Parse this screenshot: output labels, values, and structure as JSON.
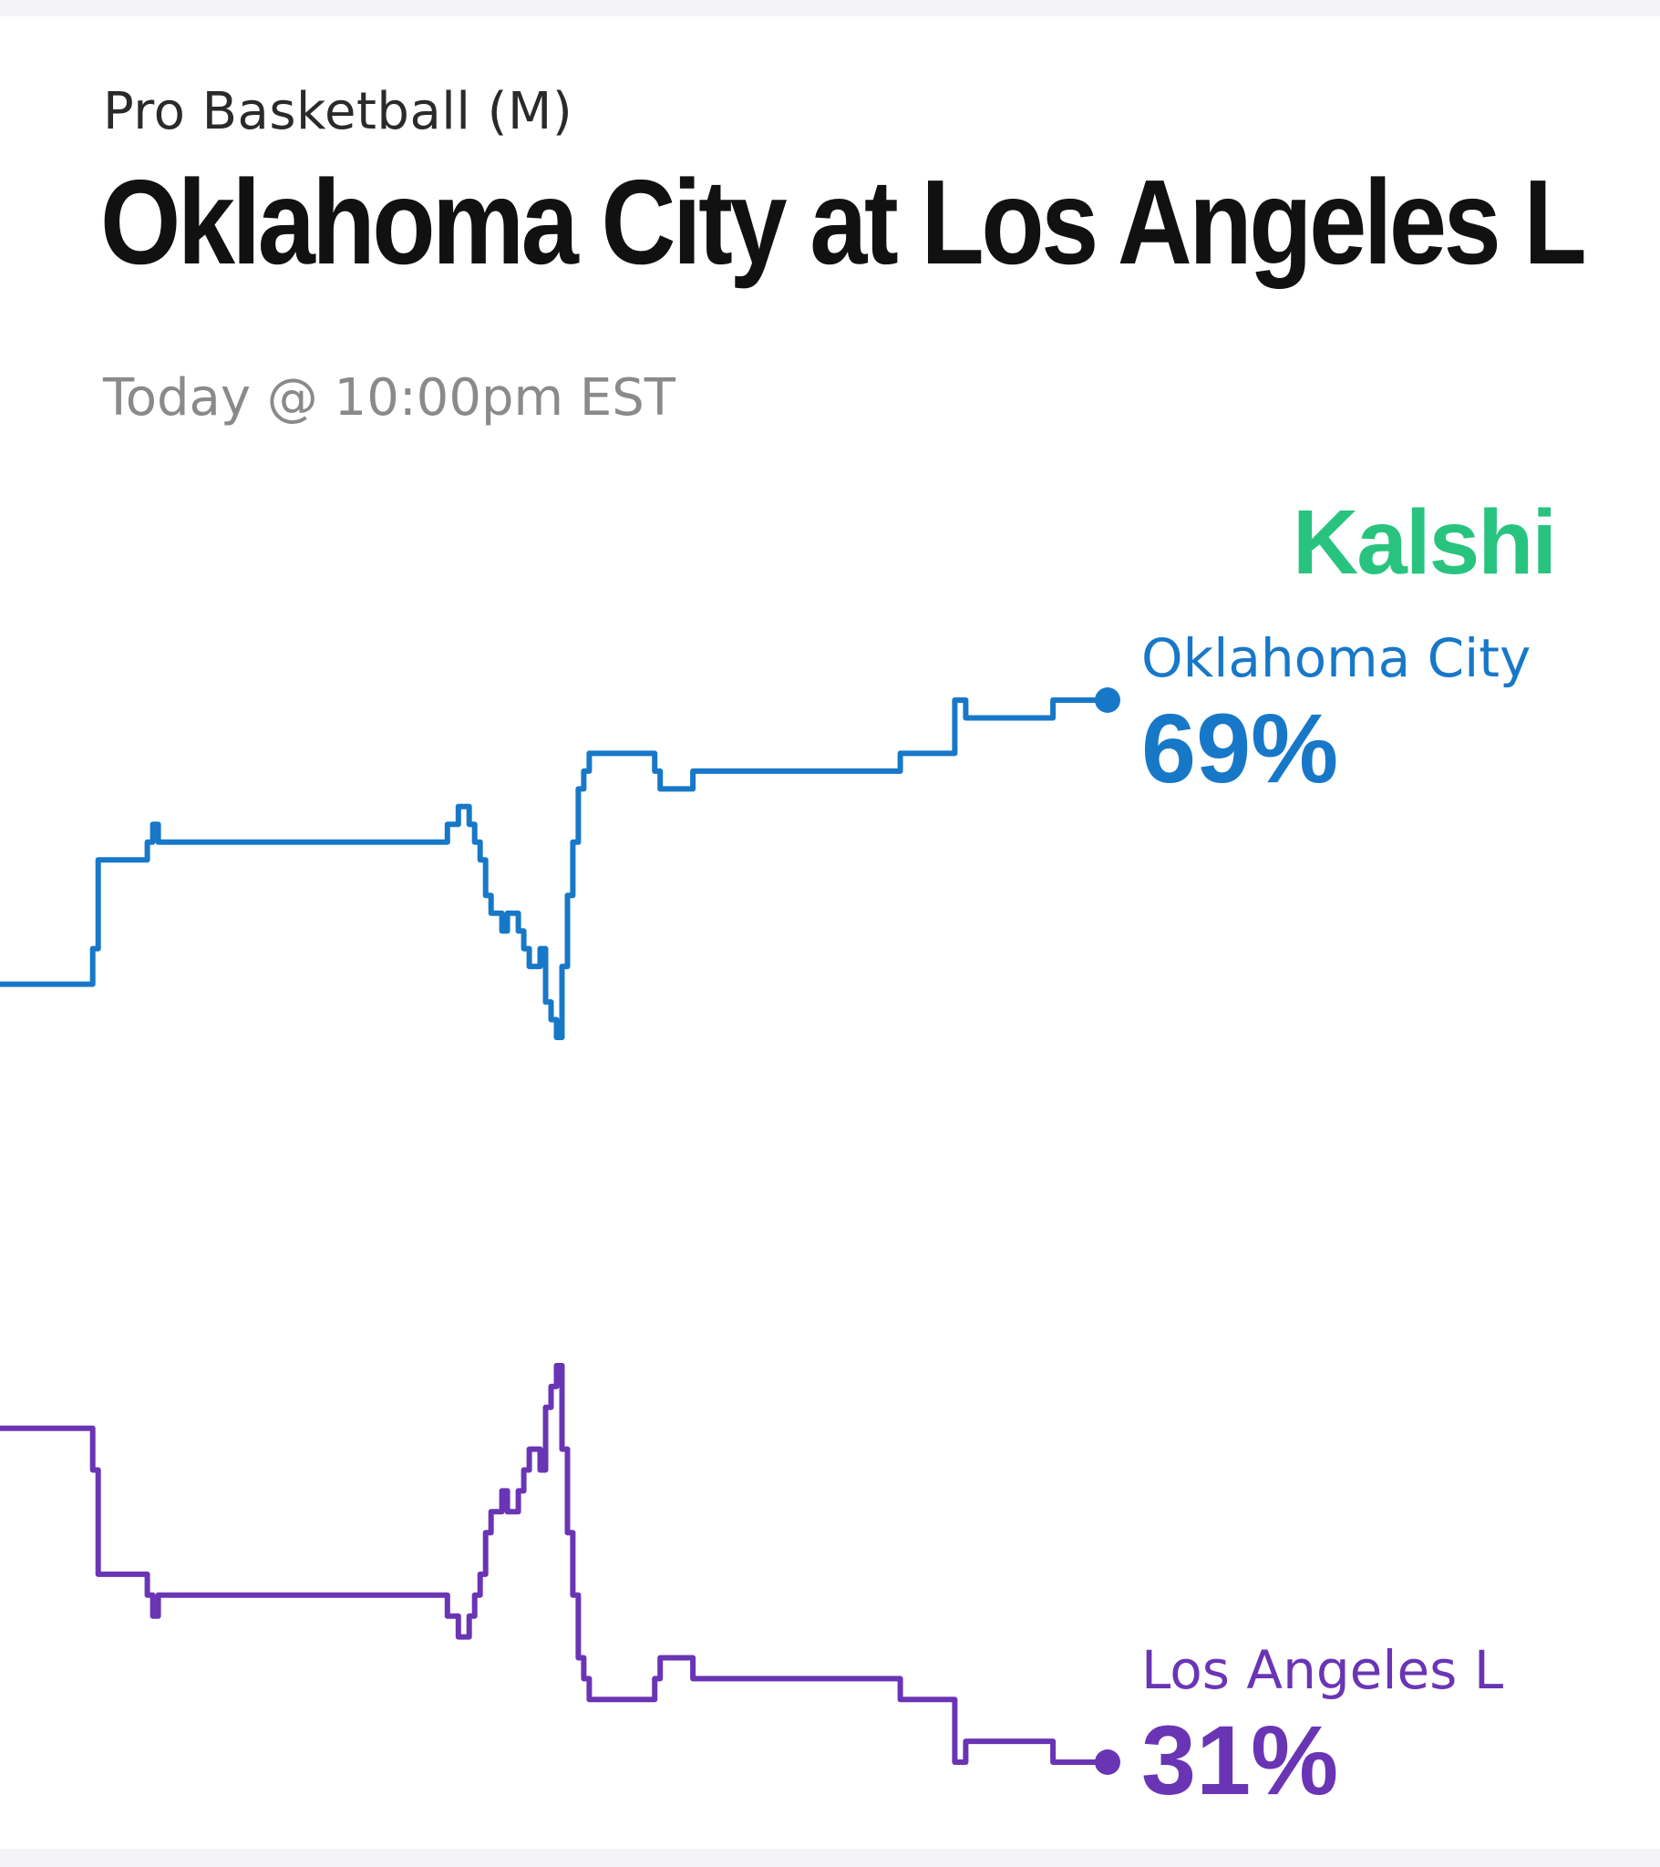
{
  "header": {
    "category": "Pro Basketball (M)",
    "title": "Oklahoma City at Los Angeles L",
    "time": "Today @ 10:00pm EST",
    "brand": "Kalshi",
    "brand_color": "#28c47f"
  },
  "chart_data": {
    "type": "line",
    "title": "",
    "xlabel": "",
    "ylabel": "",
    "ylim": [
      0,
      100
    ],
    "grid": false,
    "legend": "right-end labels",
    "series": [
      {
        "name": "Oklahoma City",
        "label_value": "69%",
        "color": "#1878c8",
        "values": [
          53,
          53,
          53,
          53,
          53,
          53,
          53,
          53,
          53,
          53,
          53,
          53,
          53,
          53,
          53,
          53,
          53,
          55,
          60,
          60,
          60,
          60,
          60,
          60,
          60,
          60,
          60,
          61,
          62,
          61,
          61,
          61,
          61,
          61,
          61,
          61,
          61,
          61,
          61,
          61,
          61,
          61,
          61,
          61,
          61,
          61,
          61,
          61,
          61,
          61,
          61,
          61,
          61,
          61,
          61,
          61,
          61,
          61,
          61,
          61,
          61,
          61,
          61,
          61,
          61,
          61,
          61,
          61,
          61,
          61,
          61,
          61,
          61,
          61,
          61,
          61,
          61,
          61,
          61,
          61,
          61,
          61,
          62,
          62,
          63,
          63,
          62,
          61,
          60,
          58,
          57,
          57,
          56,
          57,
          57,
          56,
          55,
          54,
          54,
          55,
          52,
          51,
          50,
          54,
          58,
          61,
          64,
          65,
          66,
          66,
          66,
          66,
          66,
          66,
          66,
          66,
          66,
          66,
          66,
          66,
          65,
          64,
          64,
          64,
          64,
          64,
          64,
          65,
          65,
          65,
          65,
          65,
          65,
          65,
          65,
          65,
          65,
          65,
          65,
          65,
          65,
          65,
          65,
          65,
          65,
          65,
          65,
          65,
          65,
          65,
          65,
          65,
          65,
          65,
          65,
          65,
          65,
          65,
          65,
          65,
          65,
          65,
          65,
          65,
          65,
          66,
          66,
          66,
          66,
          66,
          66,
          66,
          66,
          66,
          66,
          69,
          69,
          68,
          68,
          68,
          68,
          68,
          68,
          68,
          68,
          68,
          68,
          68,
          68,
          68,
          68,
          68,
          68,
          69,
          69,
          69,
          69,
          69,
          69,
          69,
          69,
          69,
          69,
          69
        ]
      },
      {
        "name": "Los Angeles L",
        "label_value": "31%",
        "color": "#6a35b4",
        "values": [
          47,
          47,
          47,
          47,
          47,
          47,
          47,
          47,
          47,
          47,
          47,
          47,
          47,
          47,
          47,
          47,
          47,
          45,
          40,
          40,
          40,
          40,
          40,
          40,
          40,
          40,
          40,
          39,
          38,
          39,
          39,
          39,
          39,
          39,
          39,
          39,
          39,
          39,
          39,
          39,
          39,
          39,
          39,
          39,
          39,
          39,
          39,
          39,
          39,
          39,
          39,
          39,
          39,
          39,
          39,
          39,
          39,
          39,
          39,
          39,
          39,
          39,
          39,
          39,
          39,
          39,
          39,
          39,
          39,
          39,
          39,
          39,
          39,
          39,
          39,
          39,
          39,
          39,
          39,
          39,
          39,
          39,
          38,
          38,
          37,
          37,
          38,
          39,
          40,
          42,
          43,
          43,
          44,
          43,
          43,
          44,
          45,
          46,
          46,
          45,
          48,
          49,
          50,
          46,
          42,
          39,
          36,
          35,
          34,
          34,
          34,
          34,
          34,
          34,
          34,
          34,
          34,
          34,
          34,
          34,
          35,
          36,
          36,
          36,
          36,
          36,
          36,
          35,
          35,
          35,
          35,
          35,
          35,
          35,
          35,
          35,
          35,
          35,
          35,
          35,
          35,
          35,
          35,
          35,
          35,
          35,
          35,
          35,
          35,
          35,
          35,
          35,
          35,
          35,
          35,
          35,
          35,
          35,
          35,
          35,
          35,
          35,
          35,
          35,
          35,
          34,
          34,
          34,
          34,
          34,
          34,
          34,
          34,
          34,
          34,
          31,
          31,
          32,
          32,
          32,
          32,
          32,
          32,
          32,
          32,
          32,
          32,
          32,
          32,
          32,
          32,
          32,
          32,
          31,
          31,
          31,
          31,
          31,
          31,
          31,
          31,
          31,
          31,
          31
        ]
      }
    ]
  }
}
